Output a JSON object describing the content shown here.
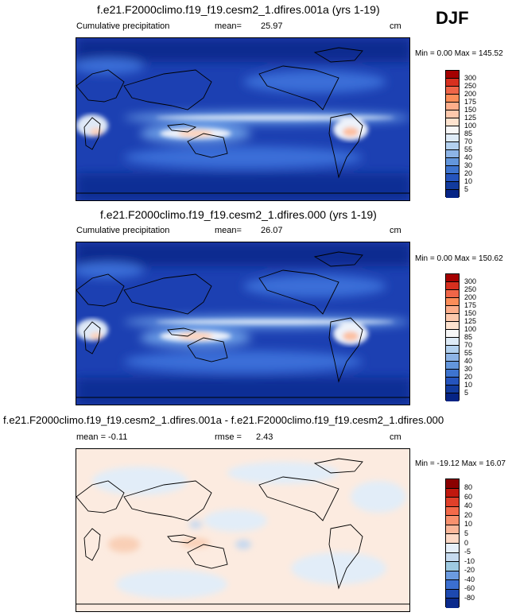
{
  "season": "DJF",
  "panels": [
    {
      "title": "f.e21.F2000climo.f19_f19.cesm2_1.dfires.001a (yrs 1-19)",
      "left_label": "Cumulative precipitation",
      "stat1_label": "mean=",
      "stat1_value": "25.97",
      "units": "cm",
      "minmax": "Min =   0.00 Max = 145.52",
      "colorbar_labels": [
        "300",
        "250",
        "200",
        "175",
        "150",
        "125",
        "100",
        "85",
        "70",
        "55",
        "40",
        "30",
        "20",
        "10",
        "5"
      ],
      "colorbar_colors": [
        "#a50000",
        "#d7301f",
        "#ef6548",
        "#fc8d59",
        "#fdae8b",
        "#fdc9ad",
        "#fee3cf",
        "#f7f7f7",
        "#deebf7",
        "#b3d1ef",
        "#8db4e6",
        "#6396dc",
        "#3e74cf",
        "#2554bd",
        "#123b9e",
        "#062485"
      ]
    },
    {
      "title": "f.e21.F2000climo.f19_f19.cesm2_1.dfires.000 (yrs 1-19)",
      "left_label": "Cumulative precipitation",
      "stat1_label": "mean=",
      "stat1_value": "26.07",
      "units": "cm",
      "minmax": "Min =   0.00 Max = 150.62",
      "colorbar_labels": [
        "300",
        "250",
        "200",
        "175",
        "150",
        "125",
        "100",
        "85",
        "70",
        "55",
        "40",
        "30",
        "20",
        "10",
        "5"
      ],
      "colorbar_colors": [
        "#a50000",
        "#d7301f",
        "#ef6548",
        "#fc8d59",
        "#fdae8b",
        "#fdc9ad",
        "#fee3cf",
        "#f7f7f7",
        "#deebf7",
        "#b3d1ef",
        "#8db4e6",
        "#6396dc",
        "#3e74cf",
        "#2554bd",
        "#123b9e",
        "#062485"
      ]
    },
    {
      "title": "f.e21.F2000climo.f19_f19.cesm2_1.dfires.001a - f.e21.F2000climo.f19_f19.cesm2_1.dfires.000",
      "left_label": "mean = -0.11",
      "stat1_label": "rmse =",
      "stat1_value": "2.43",
      "units": "cm",
      "minmax": "Min = -19.12 Max = 16.07",
      "colorbar_labels": [
        "80",
        "60",
        "40",
        "20",
        "10",
        "5",
        "0",
        "-5",
        "-10",
        "-20",
        "-40",
        "-60",
        "-80"
      ],
      "colorbar_colors": [
        "#8b0000",
        "#c0180e",
        "#e0402a",
        "#f36a4a",
        "#f8916e",
        "#fbb79a",
        "#fdd9c6",
        "#e6f0fa",
        "#c6dbef",
        "#9ecae1",
        "#6b9be0",
        "#3b6fd0",
        "#1d49b0",
        "#0a2a8c"
      ]
    }
  ]
}
